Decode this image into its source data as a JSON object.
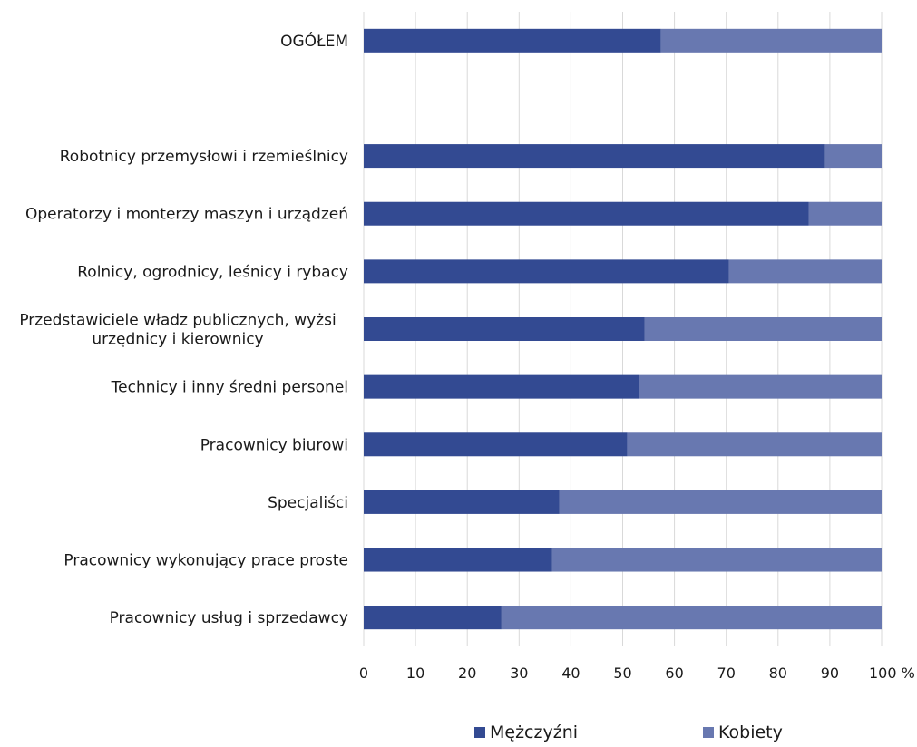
{
  "chart_data": {
    "type": "bar",
    "orientation": "horizontal",
    "stacked": true,
    "categories": [
      "OGÓŁEM",
      "",
      "Robotnicy przemysłowi i rzemieślnicy",
      "Operatorzy i monterzy maszyn i urządzeń",
      "Rolnicy, ogrodnicy, leśnicy i rybacy",
      "Przedstawiciele władz publicznych, wyżsi urzędnicy i kierownicy",
      "Technicy i inny średni personel",
      "Pracownicy biurowi",
      "Specjaliści",
      "Pracownicy wykonujący prace proste",
      "Pracownicy usług i sprzedawcy"
    ],
    "category_lines": [
      [
        "OGÓŁEM"
      ],
      [],
      [
        "Robotnicy przemysłowi i rzemieślnicy"
      ],
      [
        "Operatorzy i monterzy maszyn i urządzeń"
      ],
      [
        "Rolnicy, ogrodnicy, leśnicy i rybacy"
      ],
      [
        "Przedstawiciele władz publicznych, wyżsi",
        "urzędnicy i kierownicy"
      ],
      [
        "Technicy i inny średni personel"
      ],
      [
        "Pracownicy biurowi"
      ],
      [
        "Specjaliści"
      ],
      [
        "Pracownicy wykonujący prace proste"
      ],
      [
        "Pracownicy usług i sprzedawcy"
      ]
    ],
    "series": [
      {
        "name": "Mężczyźni",
        "color": "#334a92",
        "values": [
          57.4,
          null,
          89.1,
          85.9,
          70.5,
          54.2,
          53.1,
          50.9,
          37.8,
          36.4,
          26.6
        ]
      },
      {
        "name": "Kobiety",
        "color": "#6878b0",
        "values": [
          42.6,
          null,
          10.9,
          14.1,
          29.5,
          45.8,
          46.9,
          49.1,
          62.2,
          63.6,
          73.4
        ]
      }
    ],
    "xlim": [
      0,
      100
    ],
    "xticks": [
      "0",
      "10",
      "20",
      "30",
      "40",
      "50",
      "60",
      "70",
      "80",
      "90",
      "100 %"
    ],
    "grid": true,
    "legend_position": "bottom"
  },
  "legend": {
    "men": "Mężczyźni",
    "women": "Kobiety"
  }
}
